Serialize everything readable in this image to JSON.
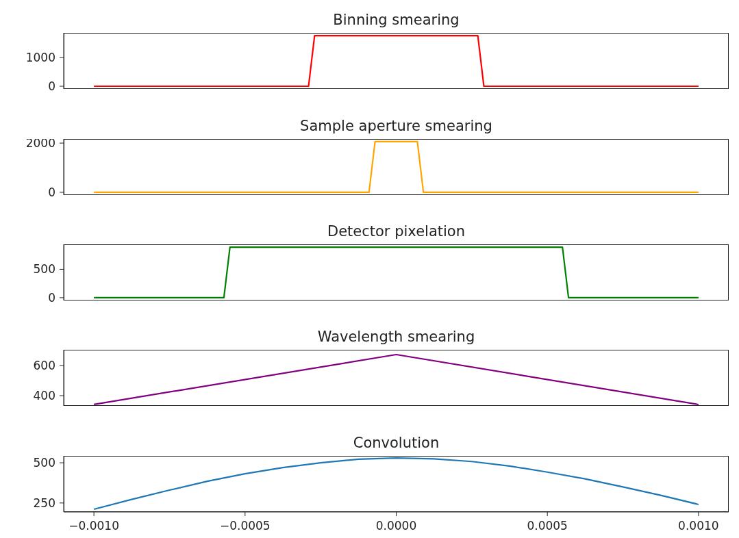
{
  "chart_data": [
    {
      "type": "line",
      "title": "Binning smearing",
      "x": [
        -0.001,
        -0.00029,
        -0.00027,
        0.00027,
        0.00029,
        0.001
      ],
      "series": [
        {
          "color": "#ff0000",
          "values": [
            0,
            0,
            1760,
            1760,
            0,
            0
          ]
        }
      ],
      "xlim": [
        -0.0011,
        0.0011
      ],
      "ylim": [
        -95,
        1857
      ],
      "yticks": [
        0,
        1000
      ],
      "tick_labels": "y",
      "grid": false,
      "legend": false
    },
    {
      "type": "line",
      "title": "Sample aperture smearing",
      "x": [
        -0.001,
        -9e-05,
        -7e-05,
        7e-05,
        9e-05,
        0.001
      ],
      "series": [
        {
          "color": "#ffa500",
          "values": [
            0,
            0,
            2060,
            2060,
            0,
            0
          ]
        }
      ],
      "xlim": [
        -0.0011,
        0.0011
      ],
      "ylim": [
        -113,
        2169
      ],
      "yticks": [
        0,
        2000
      ],
      "tick_labels": "y",
      "grid": false,
      "legend": false
    },
    {
      "type": "line",
      "title": "Detector pixelation",
      "x": [
        -0.001,
        -0.00057,
        -0.00055,
        0.00055,
        0.00057,
        0.001
      ],
      "series": [
        {
          "color": "#008000",
          "values": [
            0,
            0,
            890,
            890,
            0,
            0
          ]
        }
      ],
      "xlim": [
        -0.0011,
        0.0011
      ],
      "ylim": [
        -49,
        939
      ],
      "yticks": [
        0,
        500
      ],
      "tick_labels": "y",
      "grid": false,
      "legend": false
    },
    {
      "type": "line",
      "title": "Wavelength smearing",
      "x": [
        -0.001,
        0,
        0.001
      ],
      "series": [
        {
          "color": "#800080",
          "values": [
            342,
            673,
            341
          ]
        }
      ],
      "xlim": [
        -0.0011,
        0.0011
      ],
      "ylim": [
        332,
        705
      ],
      "yticks": [
        400,
        600
      ],
      "tick_labels": "y",
      "grid": false,
      "legend": false
    },
    {
      "type": "line",
      "title": "Convolution",
      "x": [
        -0.001,
        -0.000875,
        -0.00075,
        -0.000625,
        -0.0005,
        -0.000375,
        -0.00025,
        -0.000125,
        0,
        0.000125,
        0.00025,
        0.000375,
        0.0005,
        0.000625,
        0.00075,
        0.000875,
        0.001
      ],
      "series": [
        {
          "color": "#1f77b4",
          "values": [
            211,
            272,
            330,
            385,
            432,
            470,
            500,
            522,
            530,
            524,
            508,
            480,
            442,
            400,
            350,
            298,
            241
          ]
        }
      ],
      "xlim": [
        -0.0011,
        0.0011
      ],
      "ylim": [
        194,
        543
      ],
      "yticks": [
        250,
        500
      ],
      "xticks": [
        {
          "value": -0.001,
          "label": "−0.0010"
        },
        {
          "value": -0.0005,
          "label": "−0.0005"
        },
        {
          "value": 0,
          "label": "0.0000"
        },
        {
          "value": 0.0005,
          "label": "0.0005"
        },
        {
          "value": 0.001,
          "label": "0.0010"
        }
      ],
      "grid": false,
      "legend": false
    }
  ]
}
